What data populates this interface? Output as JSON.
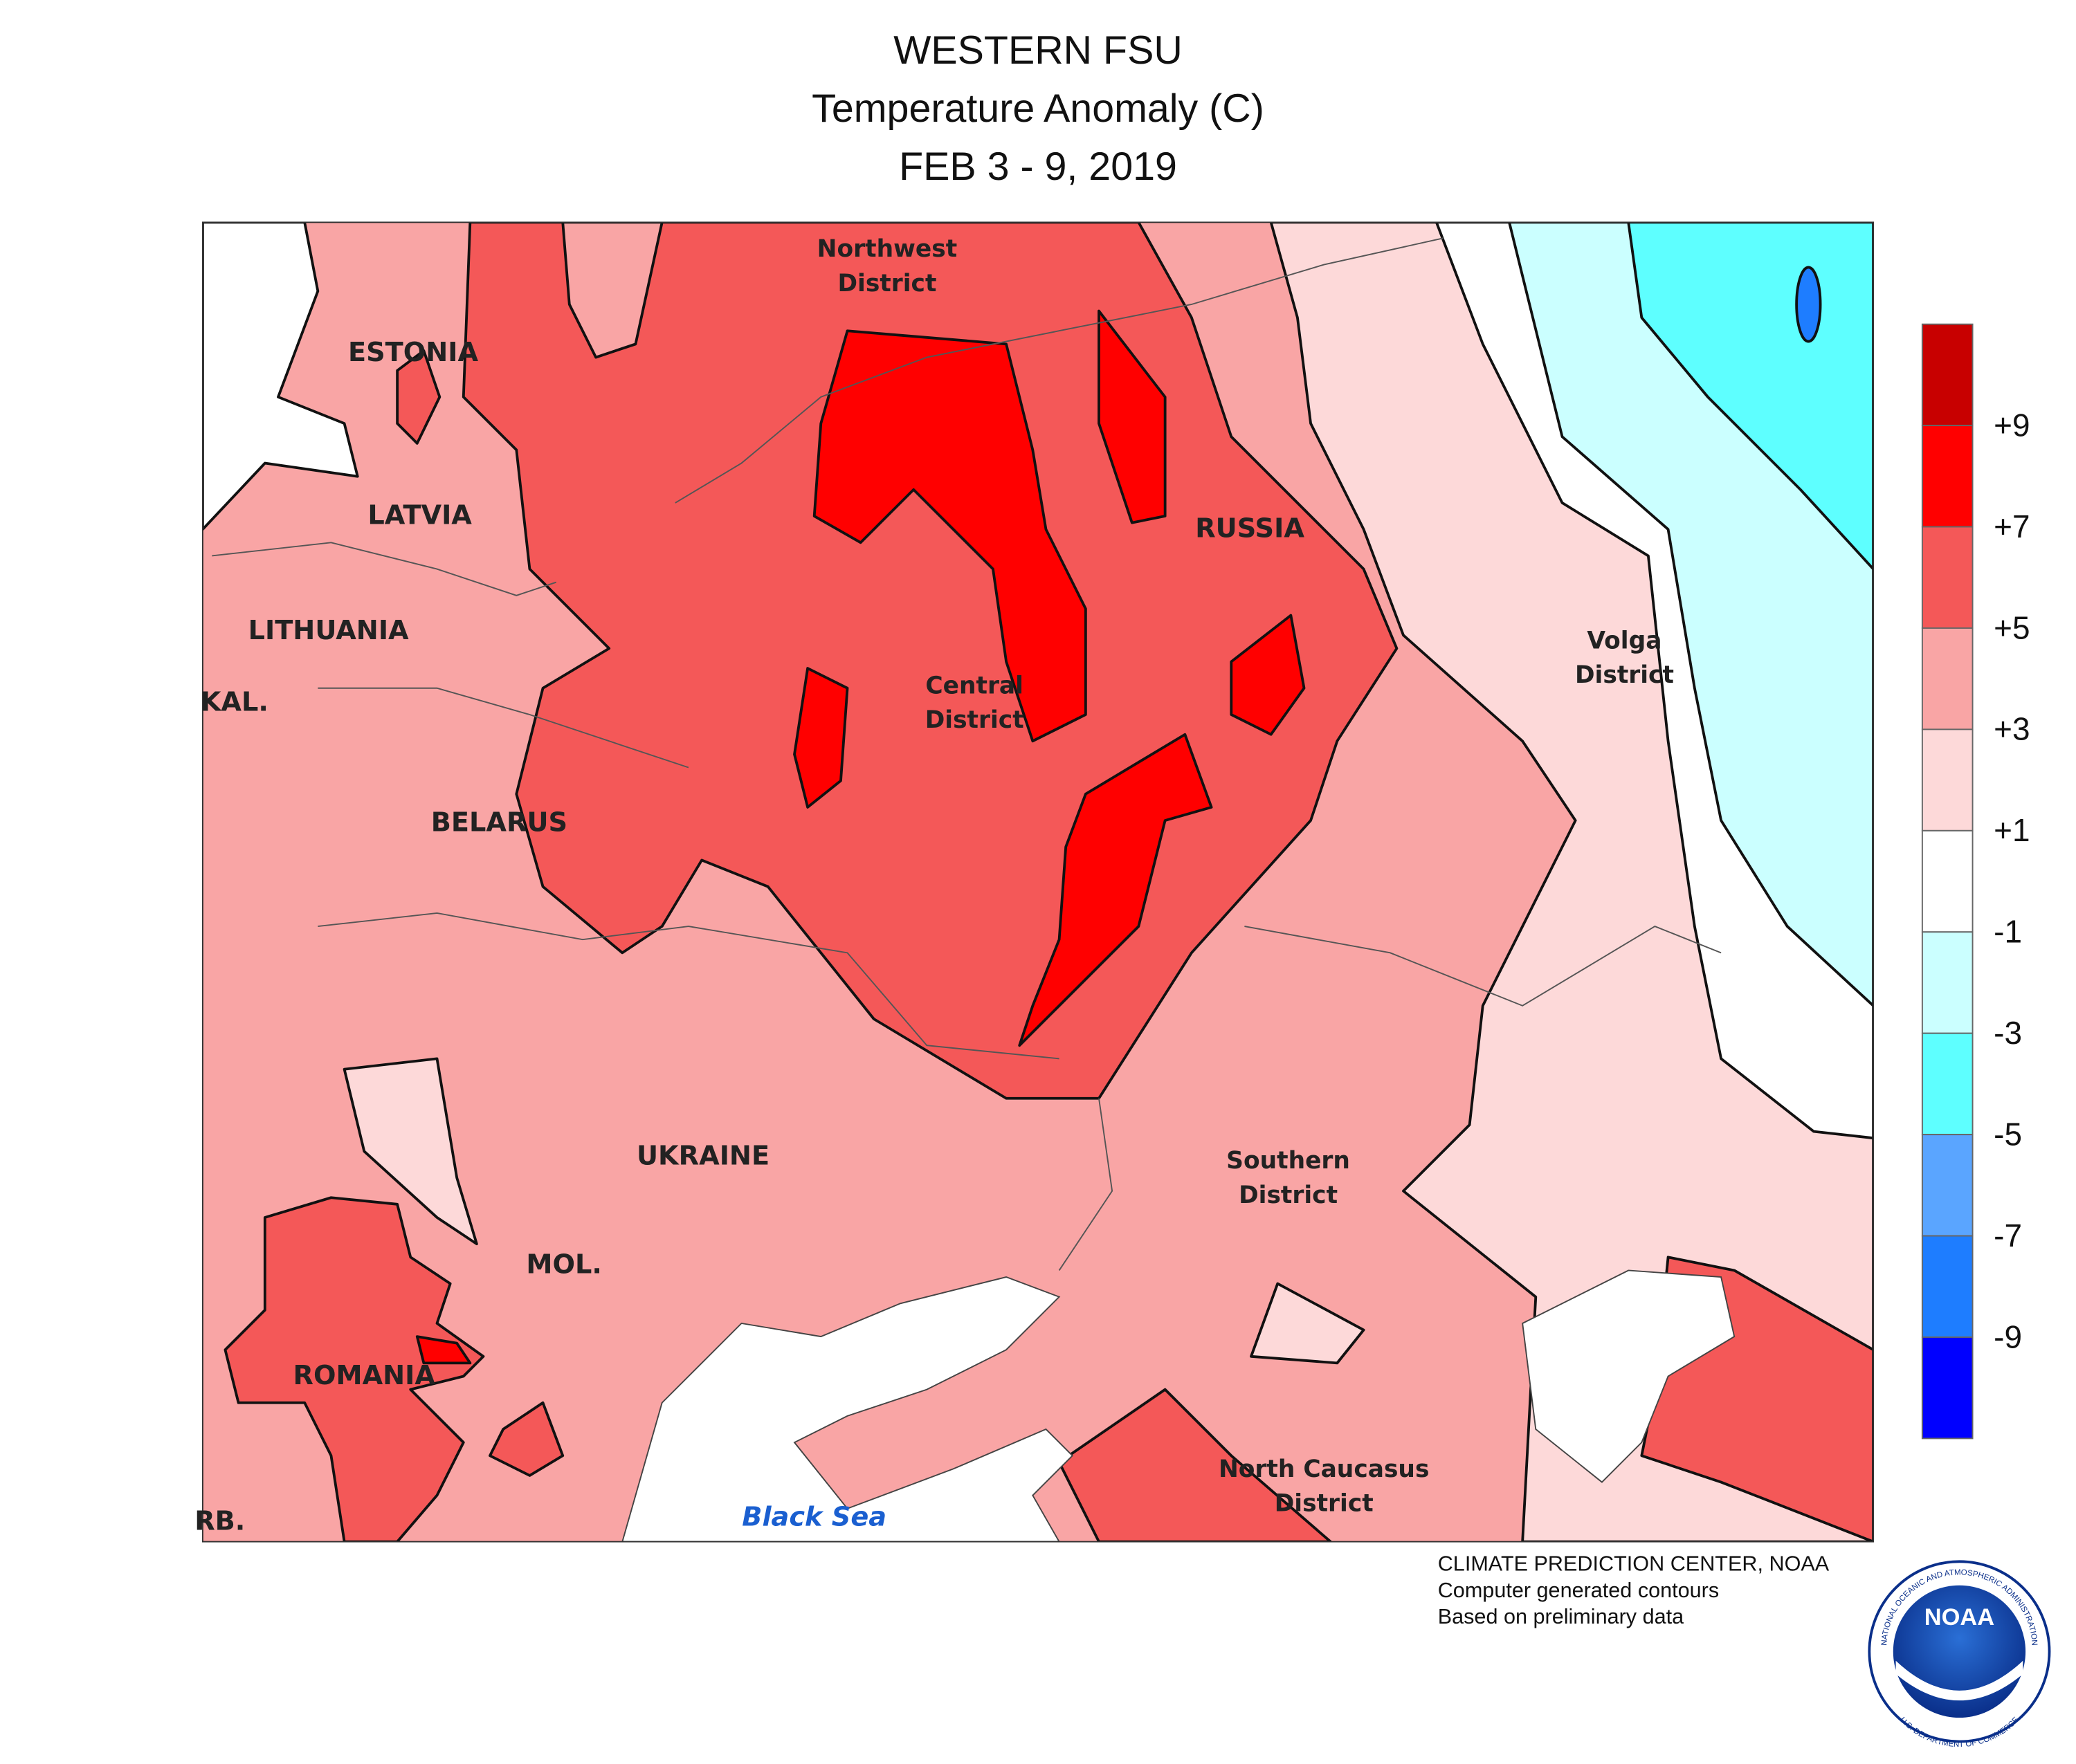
{
  "header": {
    "title": "WESTERN FSU",
    "subtitle": "Temperature Anomaly (C)",
    "dates": "FEB 3 - 9, 2019"
  },
  "map": {
    "labels": [
      [
        "Northwest",
        "District"
      ],
      [
        "ESTONIA"
      ],
      [
        "LATVIA"
      ],
      [
        "LITHUANIA"
      ],
      [
        "KAL."
      ],
      [
        "BELARUS"
      ],
      [
        "RUSSIA"
      ],
      [
        "Central",
        "District"
      ],
      [
        "Volga",
        "District"
      ],
      [
        "UKRAINE"
      ],
      [
        "Southern",
        "District"
      ],
      [
        "MOL."
      ],
      [
        "ROMANIA"
      ],
      [
        "North Caucasus",
        "District"
      ],
      [
        "RB."
      ]
    ],
    "sea": "Black Sea"
  },
  "legend": {
    "colors": [
      "#c80000",
      "#ff0000",
      "#f45858",
      "#f9a5a5",
      "#fdd9d9",
      "#ffffff",
      "#cbffff",
      "#5effff",
      "#5aa5ff",
      "#1e7dff",
      "#0000ff"
    ],
    "ticks": [
      "+9",
      "+7",
      "+5",
      "+3",
      "+1",
      "-1",
      "-3",
      "-5",
      "-7",
      "-9"
    ]
  },
  "credits": [
    "CLIMATE PREDICTION CENTER, NOAA",
    "Computer generated contours",
    "Based on preliminary data"
  ],
  "logo": {
    "text": "NOAA",
    "ring": "NATIONAL OCEANIC AND ATMOSPHERIC ADMINISTRATION",
    "ring_bottom": "U.S. DEPARTMENT OF COMMERCE"
  }
}
